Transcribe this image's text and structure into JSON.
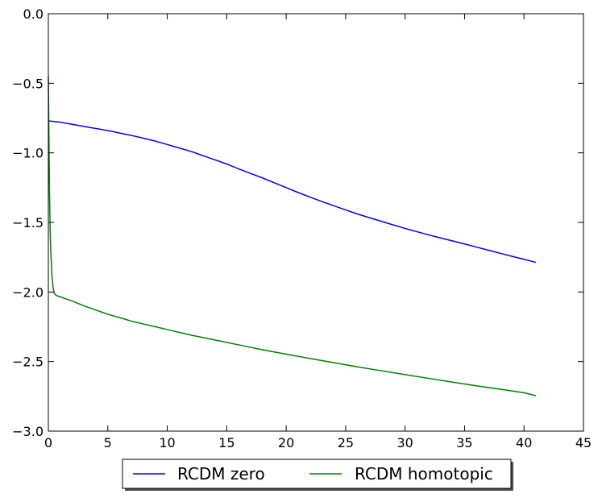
{
  "chart_data": {
    "type": "line",
    "title": "",
    "xlabel": "",
    "ylabel": "",
    "xlim": [
      0,
      45
    ],
    "ylim": [
      -3.0,
      0.0
    ],
    "xticks": [
      0,
      5,
      10,
      15,
      20,
      25,
      30,
      35,
      40,
      45
    ],
    "yticks": [
      0.0,
      -0.5,
      -1.0,
      -1.5,
      -2.0,
      -2.5,
      -3.0
    ],
    "xtick_labels": [
      "0",
      "5",
      "10",
      "15",
      "20",
      "25",
      "30",
      "35",
      "40",
      "45"
    ],
    "ytick_labels": [
      "0.0",
      "−0.5",
      "−1.0",
      "−1.5",
      "−2.0",
      "−2.5",
      "−3.0"
    ],
    "grid": false,
    "legend_position": "bottom-center",
    "series": [
      {
        "name": "RCDM zero",
        "color": "#0000ff",
        "x": [
          0,
          1,
          2,
          3,
          4,
          5,
          6,
          7,
          8,
          9,
          10,
          11,
          12,
          13,
          14,
          15,
          16,
          17,
          18,
          19,
          20,
          21,
          22,
          23,
          24,
          25,
          26,
          27,
          28,
          29,
          30,
          31,
          32,
          33,
          34,
          35,
          36,
          37,
          38,
          39,
          40,
          41
        ],
        "y": [
          -0.77,
          -0.78,
          -0.795,
          -0.81,
          -0.825,
          -0.84,
          -0.858,
          -0.875,
          -0.895,
          -0.916,
          -0.94,
          -0.965,
          -0.99,
          -1.02,
          -1.05,
          -1.08,
          -1.115,
          -1.148,
          -1.18,
          -1.215,
          -1.25,
          -1.285,
          -1.318,
          -1.35,
          -1.38,
          -1.41,
          -1.44,
          -1.466,
          -1.492,
          -1.518,
          -1.543,
          -1.567,
          -1.59,
          -1.612,
          -1.633,
          -1.655,
          -1.677,
          -1.7,
          -1.722,
          -1.744,
          -1.765,
          -1.787
        ]
      },
      {
        "name": "RCDM homotopic",
        "color": "#008000",
        "x": [
          0,
          0.05,
          0.1,
          0.15,
          0.2,
          0.3,
          0.4,
          0.5,
          0.6,
          0.7,
          0.8,
          1,
          2,
          3,
          4,
          5,
          6,
          7,
          8,
          9,
          10,
          12,
          14,
          16,
          18,
          20,
          22,
          24,
          26,
          28,
          30,
          32,
          34,
          36,
          38,
          40,
          41
        ],
        "y": [
          -0.45,
          -0.9,
          -1.3,
          -1.55,
          -1.7,
          -1.88,
          -1.97,
          -2.01,
          -2.02,
          -2.025,
          -2.03,
          -2.035,
          -2.065,
          -2.1,
          -2.13,
          -2.16,
          -2.185,
          -2.21,
          -2.23,
          -2.25,
          -2.27,
          -2.31,
          -2.345,
          -2.38,
          -2.415,
          -2.447,
          -2.478,
          -2.508,
          -2.538,
          -2.566,
          -2.594,
          -2.621,
          -2.648,
          -2.674,
          -2.699,
          -2.724,
          -2.745
        ]
      }
    ]
  },
  "legend": {
    "items": [
      {
        "label": "RCDM zero",
        "color": "#0000ff"
      },
      {
        "label": "RCDM homotopic",
        "color": "#008000"
      }
    ]
  }
}
